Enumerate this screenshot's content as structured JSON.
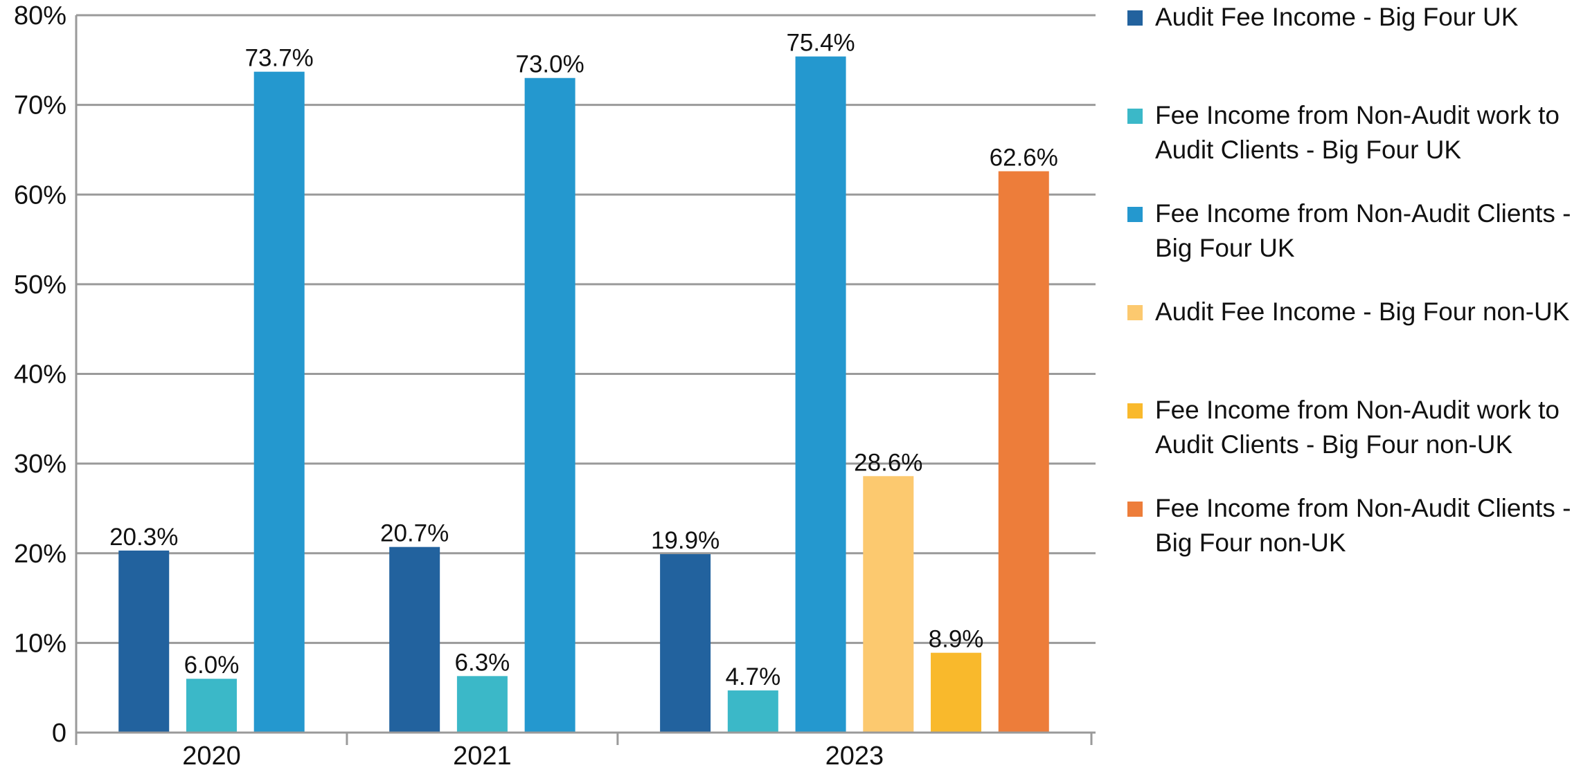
{
  "chart_data": {
    "type": "bar",
    "categories": [
      "2020",
      "2021",
      "2023"
    ],
    "series": [
      {
        "name": "Audit Fee Income - Big Four UK",
        "color": "#22629e",
        "values": [
          20.3,
          20.7,
          19.9
        ],
        "value_labels": [
          "20.3%",
          "20.7%",
          "19.9%"
        ]
      },
      {
        "name": "Fee Income from Non-Audit work to Audit Clients - Big Four UK",
        "color": "#3bb8c8",
        "values": [
          6.0,
          6.3,
          4.7
        ],
        "value_labels": [
          "6.0%",
          "6.3%",
          "4.7%"
        ]
      },
      {
        "name": "Fee Income from Non-Audit Clients - Big Four UK",
        "color": "#2498cf",
        "values": [
          73.7,
          73.0,
          75.4
        ],
        "value_labels": [
          "73.7%",
          "73.0%",
          "75.4%"
        ]
      },
      {
        "name": "Audit Fee Income - Big Four non-UK",
        "color": "#fcc96f",
        "values": [
          null,
          null,
          28.6
        ],
        "value_labels": [
          null,
          null,
          "28.6%"
        ]
      },
      {
        "name": "Fee Income from Non-Audit work to Audit Clients - Big Four non-UK",
        "color": "#f9b92c",
        "values": [
          null,
          null,
          8.9
        ],
        "value_labels": [
          null,
          null,
          "8.9%"
        ]
      },
      {
        "name": "Fee Income from Non-Audit Clients - Big Four non-UK",
        "color": "#ed7d3a",
        "values": [
          null,
          null,
          62.6
        ],
        "value_labels": [
          null,
          null,
          "62.6%"
        ]
      }
    ],
    "ylim": [
      0,
      80
    ],
    "yticks": [
      0,
      {
        "value": 10,
        "label": "10%"
      },
      {
        "value": 20,
        "label": "20%"
      },
      {
        "value": 30,
        "label": "30%"
      },
      {
        "value": 40,
        "label": "40%"
      },
      {
        "value": 50,
        "label": "50%"
      },
      {
        "value": 60,
        "label": "60%"
      },
      {
        "value": 70,
        "label": "70%"
      },
      {
        "value": 80,
        "label": "80%"
      }
    ],
    "grid": true,
    "legend": "right"
  }
}
